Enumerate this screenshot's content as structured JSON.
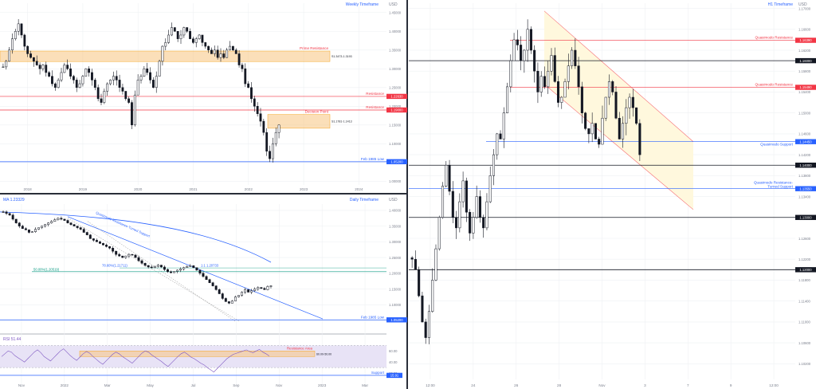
{
  "colors": {
    "up": "#ffffff",
    "down": "#131722",
    "wick": "#131722",
    "grid": "#eef0f3",
    "axis_text": "#7a7f8c",
    "blue_line": "#2962ff",
    "red_line": "#f23645",
    "green_line": "#089981",
    "zone_orange": "#f7c47f",
    "zone_red": "#f6bcbc",
    "zone_yellow": "#fff8dd",
    "rsi_line": "#7e57c2",
    "rsi_band": "#e8e3f6",
    "black_level": "#131722"
  },
  "chart_data": [
    {
      "id": "weekly",
      "type": "candlestick",
      "title": "Weekly Timeframe",
      "currency": "USD",
      "x_ticks": [
        "2018",
        "2019",
        "2020",
        "2021",
        "2022",
        "2023",
        "2024"
      ],
      "y_ticks": [
        "1.45000",
        "1.40000",
        "1.35000",
        "1.30000",
        "1.25000",
        "1.20000",
        "1.15000",
        "1.10000",
        "1.05000",
        "1.00000"
      ],
      "ylim": [
        0.99,
        1.475
      ],
      "series_closes": [
        1.305,
        1.32,
        1.35,
        1.38,
        1.4,
        1.42,
        1.39,
        1.36,
        1.34,
        1.33,
        1.32,
        1.31,
        1.3,
        1.31,
        1.29,
        1.28,
        1.26,
        1.25,
        1.27,
        1.29,
        1.31,
        1.3,
        1.28,
        1.27,
        1.25,
        1.26,
        1.28,
        1.3,
        1.29,
        1.27,
        1.25,
        1.22,
        1.21,
        1.24,
        1.26,
        1.27,
        1.28,
        1.27,
        1.25,
        1.24,
        1.22,
        1.21,
        1.15,
        1.23,
        1.27,
        1.28,
        1.3,
        1.29,
        1.27,
        1.25,
        1.28,
        1.32,
        1.36,
        1.37,
        1.39,
        1.41,
        1.4,
        1.38,
        1.39,
        1.41,
        1.4,
        1.38,
        1.37,
        1.38,
        1.39,
        1.37,
        1.36,
        1.35,
        1.34,
        1.35,
        1.33,
        1.34,
        1.33,
        1.35,
        1.36,
        1.35,
        1.34,
        1.31,
        1.3,
        1.26,
        1.25,
        1.22,
        1.2,
        1.18,
        1.16,
        1.13,
        1.08,
        1.06,
        1.1,
        1.13,
        1.15
      ],
      "levels": [
        {
          "label": "Prime Resistance",
          "price": 1.3383,
          "color": "red",
          "tag": ""
        },
        {
          "label": "Resistance",
          "price": 1.2263,
          "color": "red",
          "tag": "1.22630"
        },
        {
          "label": "Resistance",
          "price": 1.19,
          "color": "red",
          "tag": "1.19000"
        },
        {
          "label": "Feb 1985 Low",
          "price": 1.052,
          "color": "blue",
          "tag": "1.05200"
        }
      ],
      "zones": [
        {
          "label": "Prime Resistance",
          "from": 1.3193,
          "to": 1.3473,
          "range_label": "S1.3473-1.3193",
          "color": "orange"
        },
        {
          "label": "Decision Point",
          "from": 1.1413,
          "to": 1.1781,
          "range_label": "S1.1781-1.1413",
          "color": "orange"
        }
      ]
    },
    {
      "id": "daily",
      "type": "candlestick",
      "title": "Daily Timeframe",
      "currency": "USD",
      "ma_label": "MA 1.23329",
      "x_ticks": [
        "Nov",
        "2022",
        "Mar",
        "May",
        "Jul",
        "Sep",
        "Nov",
        "2023",
        "Mar"
      ],
      "y_ticks": [
        "1.40000",
        "1.35000",
        "1.30000",
        "1.25000",
        "1.20000",
        "1.15000",
        "1.10000",
        "1.05000"
      ],
      "ylim": [
        1.04,
        1.42
      ],
      "series_closes": [
        1.395,
        1.39,
        1.385,
        1.372,
        1.36,
        1.35,
        1.342,
        1.338,
        1.33,
        1.332,
        1.34,
        1.345,
        1.35,
        1.355,
        1.36,
        1.365,
        1.37,
        1.375,
        1.372,
        1.368,
        1.36,
        1.355,
        1.35,
        1.345,
        1.34,
        1.33,
        1.322,
        1.31,
        1.305,
        1.3,
        1.295,
        1.29,
        1.285,
        1.28,
        1.27,
        1.26,
        1.255,
        1.25,
        1.255,
        1.26,
        1.258,
        1.25,
        1.24,
        1.232,
        1.225,
        1.22,
        1.218,
        1.222,
        1.226,
        1.22,
        1.212,
        1.205,
        1.202,
        1.206,
        1.21,
        1.214,
        1.218,
        1.222,
        1.224,
        1.218,
        1.21,
        1.2,
        1.19,
        1.18,
        1.17,
        1.16,
        1.148,
        1.135,
        1.12,
        1.11,
        1.105,
        1.112,
        1.125,
        1.13,
        1.14,
        1.148,
        1.14,
        1.145,
        1.15,
        1.155,
        1.152,
        1.148,
        1.158,
        1.16
      ],
      "annotations": [
        {
          "label": "Quasimodo Resistance-Turned Support"
        },
        {
          "label": "78.60%(1.21711)"
        },
        {
          "label": "1:1 1.20733"
        },
        {
          "label": "50.00%(1.20519)"
        }
      ],
      "levels": [
        {
          "label": "Feb 1985 Low",
          "price": 1.052,
          "color": "blue",
          "tag": "1.05200"
        }
      ]
    },
    {
      "id": "rsi",
      "type": "line",
      "title": "RSI 51.44",
      "y_ticks": [
        "60.00",
        "40.00",
        "20.00"
      ],
      "ylim": [
        10,
        85
      ],
      "values": [
        50,
        55,
        60,
        58,
        52,
        48,
        44,
        40,
        46,
        52,
        58,
        62,
        57,
        50,
        46,
        42,
        48,
        54,
        60,
        64,
        58,
        52,
        47,
        43,
        49,
        55,
        59,
        56,
        50,
        45,
        40,
        36,
        42,
        48,
        54,
        58,
        55,
        50,
        46,
        42,
        38,
        44,
        50,
        56,
        60,
        58,
        53,
        49,
        45,
        41,
        36,
        32,
        38,
        44,
        50,
        55,
        58,
        54,
        49,
        46,
        42,
        38,
        35,
        30,
        26,
        22,
        28,
        34,
        40,
        46,
        50,
        54,
        56,
        58,
        60,
        62,
        59,
        57,
        60,
        63,
        58,
        55,
        51
      ],
      "zone": {
        "label": "Resistance Area",
        "from": 50,
        "to": 60,
        "range_label": "60.00-50.00"
      },
      "support": {
        "label": "Support",
        "value": 15.91,
        "tag": "15.91"
      }
    },
    {
      "id": "h1",
      "type": "candlestick",
      "title": "H1 Timeframe",
      "currency": "USD",
      "x_ticks": [
        "12:00",
        "24",
        "26",
        "28",
        "Nov",
        "3",
        "7",
        "9",
        "12:00"
      ],
      "y_ticks": [
        "1.17000",
        "1.16600",
        "1.16200",
        "1.15800",
        "1.15400",
        "1.15000",
        "1.14600",
        "1.14200",
        "1.13800",
        "1.13400",
        "1.13000",
        "1.12600",
        "1.12200",
        "1.11800",
        "1.11400",
        "1.11000",
        "1.10600",
        "1.10200"
      ],
      "ylim": [
        1.099,
        1.171
      ],
      "series_closes": [
        1.122,
        1.12,
        1.115,
        1.11,
        1.107,
        1.112,
        1.118,
        1.124,
        1.13,
        1.136,
        1.14,
        1.135,
        1.13,
        1.128,
        1.133,
        1.137,
        1.131,
        1.127,
        1.13,
        1.134,
        1.13,
        1.128,
        1.133,
        1.138,
        1.142,
        1.146,
        1.145,
        1.15,
        1.155,
        1.16,
        1.164,
        1.163,
        1.16,
        1.162,
        1.166,
        1.162,
        1.158,
        1.154,
        1.157,
        1.155,
        1.158,
        1.161,
        1.156,
        1.152,
        1.153,
        1.156,
        1.159,
        1.162,
        1.159,
        1.155,
        1.15,
        1.147,
        1.146,
        1.148,
        1.145,
        1.144,
        1.149,
        1.153,
        1.156,
        1.154,
        1.149,
        1.145,
        1.148,
        1.151,
        1.153,
        1.151,
        1.148,
        1.142
      ],
      "levels": [
        {
          "label": "Quasimodo Resistance",
          "price": 1.1639,
          "color": "red",
          "tag": "1.16390"
        },
        {
          "label": "",
          "price": 1.16,
          "color": "black",
          "tag": "1.16000"
        },
        {
          "label": "Quasimodo Resistance",
          "price": 1.1549,
          "color": "red",
          "tag": "1.15490"
        },
        {
          "label": "Quasimodo Support",
          "price": 1.1445,
          "color": "blue",
          "tag": "1.14450"
        },
        {
          "label": "",
          "price": 1.14,
          "color": "black",
          "tag": "1.14000"
        },
        {
          "label": "Quasimodo Resistance-Turned Support",
          "price": 1.1355,
          "color": "blue",
          "tag": "1.13550"
        },
        {
          "label": "",
          "price": 1.13,
          "color": "black",
          "tag": "1.13000"
        },
        {
          "label": "",
          "price": 1.12,
          "color": "black",
          "tag": "1.12000"
        }
      ]
    }
  ]
}
